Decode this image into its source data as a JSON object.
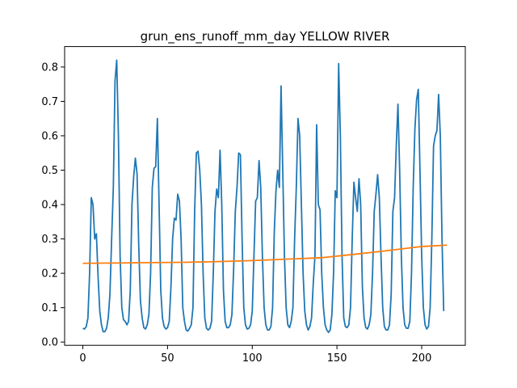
{
  "chart_data": {
    "type": "line",
    "title": "grun_ens_runoff_mm_day YELLOW RIVER",
    "xlabel": "",
    "ylabel": "",
    "xlim": [
      -10.75,
      225.75
    ],
    "ylim": [
      -0.0095,
      0.8595
    ],
    "x_ticks": [
      0,
      50,
      100,
      150,
      200
    ],
    "y_ticks": [
      0.0,
      0.1,
      0.2,
      0.3,
      0.4,
      0.5,
      0.6,
      0.7,
      0.8
    ],
    "grid": false,
    "legend": "none",
    "series": [
      {
        "color": "#1f77b4",
        "x_start": 0,
        "x_step": 1,
        "values": [
          0.04,
          0.038,
          0.045,
          0.07,
          0.2,
          0.42,
          0.4,
          0.3,
          0.315,
          0.19,
          0.09,
          0.05,
          0.03,
          0.03,
          0.04,
          0.07,
          0.14,
          0.3,
          0.45,
          0.76,
          0.82,
          0.6,
          0.25,
          0.1,
          0.065,
          0.06,
          0.05,
          0.06,
          0.15,
          0.4,
          0.48,
          0.535,
          0.49,
          0.28,
          0.12,
          0.07,
          0.042,
          0.038,
          0.05,
          0.08,
          0.2,
          0.45,
          0.505,
          0.51,
          0.65,
          0.4,
          0.15,
          0.07,
          0.045,
          0.038,
          0.042,
          0.06,
          0.16,
          0.3,
          0.36,
          0.355,
          0.43,
          0.41,
          0.3,
          0.1,
          0.06,
          0.035,
          0.032,
          0.04,
          0.05,
          0.1,
          0.38,
          0.55,
          0.555,
          0.5,
          0.4,
          0.2,
          0.07,
          0.04,
          0.035,
          0.04,
          0.06,
          0.2,
          0.38,
          0.445,
          0.42,
          0.558,
          0.4,
          0.15,
          0.06,
          0.042,
          0.042,
          0.05,
          0.08,
          0.21,
          0.38,
          0.45,
          0.55,
          0.545,
          0.3,
          0.1,
          0.05,
          0.038,
          0.04,
          0.05,
          0.09,
          0.25,
          0.41,
          0.42,
          0.528,
          0.45,
          0.25,
          0.1,
          0.05,
          0.035,
          0.035,
          0.045,
          0.1,
          0.32,
          0.44,
          0.5,
          0.45,
          0.745,
          0.5,
          0.25,
          0.1,
          0.05,
          0.042,
          0.06,
          0.1,
          0.3,
          0.45,
          0.65,
          0.6,
          0.4,
          0.2,
          0.09,
          0.05,
          0.035,
          0.045,
          0.07,
          0.17,
          0.25,
          0.632,
          0.4,
          0.385,
          0.2,
          0.1,
          0.05,
          0.035,
          0.028,
          0.035,
          0.08,
          0.2,
          0.44,
          0.42,
          0.81,
          0.6,
          0.25,
          0.07,
          0.045,
          0.042,
          0.05,
          0.1,
          0.3,
          0.465,
          0.42,
          0.38,
          0.475,
          0.4,
          0.16,
          0.07,
          0.042,
          0.038,
          0.05,
          0.08,
          0.2,
          0.38,
          0.43,
          0.487,
          0.42,
          0.25,
          0.1,
          0.045,
          0.035,
          0.035,
          0.05,
          0.14,
          0.38,
          0.42,
          0.57,
          0.692,
          0.5,
          0.25,
          0.1,
          0.05,
          0.04,
          0.04,
          0.06,
          0.2,
          0.45,
          0.62,
          0.705,
          0.735,
          0.5,
          0.25,
          0.1,
          0.05,
          0.038,
          0.045,
          0.1,
          0.3,
          0.57,
          0.6,
          0.615,
          0.72,
          0.6,
          0.3,
          0.09
        ]
      },
      {
        "color": "#ff7f0e",
        "x": [
          0,
          20,
          40,
          60,
          80,
          100,
          120,
          140,
          160,
          180,
          200,
          215
        ],
        "values": [
          0.229,
          0.23,
          0.231,
          0.232,
          0.234,
          0.237,
          0.241,
          0.245,
          0.255,
          0.266,
          0.278,
          0.282
        ]
      }
    ]
  }
}
